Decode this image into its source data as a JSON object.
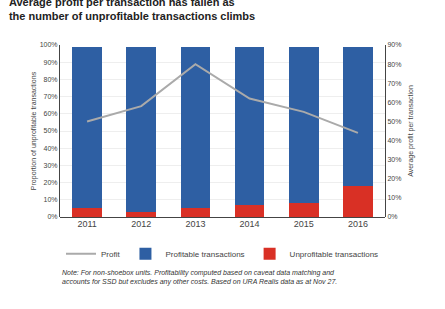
{
  "chart_data": {
    "type": "bar",
    "stacked": true,
    "title": "Average profit per transaction has fallen as\nthe number of unprofitable transactions climbs",
    "categories": [
      "2011",
      "2012",
      "2013",
      "2014",
      "2015",
      "2016"
    ],
    "series": [
      {
        "name": "Unprofitable transactions",
        "color": "#d93025",
        "values": [
          5,
          3,
          5,
          7,
          8,
          18
        ]
      },
      {
        "name": "Profitable transactions",
        "color": "#2e5fa3",
        "values": [
          94,
          96,
          94,
          92,
          91,
          81
        ]
      },
      {
        "name": "Profit",
        "type": "line",
        "axis": "y2",
        "color": "#aaaaaa",
        "values": [
          50,
          58,
          80,
          62,
          55,
          44
        ]
      }
    ],
    "ylabel": "Proportion of unprofitable transactions",
    "y2label": "Average profit per transaction",
    "ylim": [
      0,
      100
    ],
    "yticks": [
      {
        "value": 0,
        "label": "0%"
      },
      {
        "value": 10,
        "label": "10%"
      },
      {
        "value": 20,
        "label": "20%"
      },
      {
        "value": 30,
        "label": "30%"
      },
      {
        "value": 40,
        "label": "40%"
      },
      {
        "value": 50,
        "label": "50%"
      },
      {
        "value": 60,
        "label": "60%"
      },
      {
        "value": 70,
        "label": "70%"
      },
      {
        "value": 80,
        "label": "80%"
      },
      {
        "value": 90,
        "label": "90%"
      },
      {
        "value": 100,
        "label": "100%"
      }
    ],
    "y2lim": [
      0,
      90
    ],
    "y2ticks": [
      {
        "value": 0,
        "label": "0%"
      },
      {
        "value": 10,
        "label": "10%"
      },
      {
        "value": 20,
        "label": "20%"
      },
      {
        "value": 30,
        "label": "30%"
      },
      {
        "value": 40,
        "label": "40%"
      },
      {
        "value": 50,
        "label": "50%"
      },
      {
        "value": 60,
        "label": "60%"
      },
      {
        "value": 70,
        "label": "70%"
      },
      {
        "value": 80,
        "label": "80%"
      },
      {
        "value": 90,
        "label": "90%"
      }
    ],
    "grid": true,
    "legend": "bottom",
    "annotations": [
      "Note: For non-shoebox units. Profitability computed based on caveat data matching and\naccounts for SSD but excludes any other costs. Based on URA Realis data as at Nov 27."
    ]
  }
}
